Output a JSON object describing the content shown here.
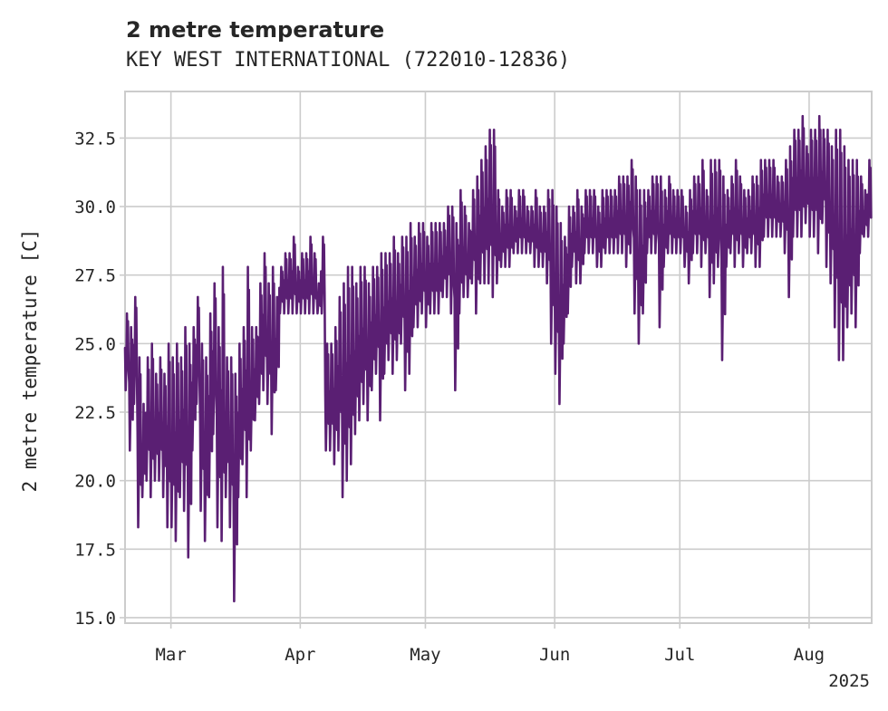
{
  "chart_data": {
    "type": "line",
    "title": "2 metre temperature",
    "subtitle": "KEY WEST INTERNATIONAL (722010-12836)",
    "ylabel": "2 metre temperature [C]",
    "xlabel": "",
    "x_axis_type": "date",
    "xlim": [
      "2025-02-18",
      "2025-08-16"
    ],
    "ylim": [
      14.8,
      34.2
    ],
    "grid": true,
    "legend": "none",
    "line_color": "#5a1f73",
    "x_ticks": [
      {
        "date": "2025-03-01",
        "label": "Mar"
      },
      {
        "date": "2025-04-01",
        "label": "Apr"
      },
      {
        "date": "2025-05-01",
        "label": "May"
      },
      {
        "date": "2025-06-01",
        "label": "Jun"
      },
      {
        "date": "2025-07-01",
        "label": "Jul"
      },
      {
        "date": "2025-08-01",
        "label": "Aug"
      }
    ],
    "x_offset_label": "2025",
    "y_ticks": [
      15.0,
      17.5,
      20.0,
      22.5,
      25.0,
      27.5,
      30.0,
      32.5
    ],
    "y_tick_labels": [
      "15.0",
      "17.5",
      "20.0",
      "22.5",
      "25.0",
      "27.5",
      "30.0",
      "32.5"
    ],
    "series": [
      {
        "x": [
          "2025-02-18",
          "2025-02-19",
          "2025-02-20",
          "2025-02-21",
          "2025-02-22",
          "2025-02-23",
          "2025-02-24",
          "2025-02-25",
          "2025-02-26",
          "2025-02-27",
          "2025-02-28",
          "2025-03-01",
          "2025-03-02",
          "2025-03-03",
          "2025-03-04",
          "2025-03-05",
          "2025-03-06",
          "2025-03-07",
          "2025-03-08",
          "2025-03-09",
          "2025-03-10",
          "2025-03-11",
          "2025-03-12",
          "2025-03-13",
          "2025-03-14",
          "2025-03-15",
          "2025-03-16",
          "2025-03-17",
          "2025-03-18",
          "2025-03-19",
          "2025-03-20",
          "2025-03-21",
          "2025-03-22",
          "2025-03-23",
          "2025-03-24",
          "2025-03-25",
          "2025-03-26",
          "2025-03-27",
          "2025-03-28",
          "2025-03-29",
          "2025-03-30",
          "2025-03-31",
          "2025-04-01",
          "2025-04-02",
          "2025-04-03",
          "2025-04-04",
          "2025-04-05",
          "2025-04-06",
          "2025-04-07",
          "2025-04-08",
          "2025-04-09",
          "2025-04-10",
          "2025-04-11",
          "2025-04-12",
          "2025-04-13",
          "2025-04-14",
          "2025-04-15",
          "2025-04-16",
          "2025-04-17",
          "2025-04-18",
          "2025-04-19",
          "2025-04-20",
          "2025-04-21",
          "2025-04-22",
          "2025-04-23",
          "2025-04-24",
          "2025-04-25",
          "2025-04-26",
          "2025-04-27",
          "2025-04-28",
          "2025-04-29",
          "2025-04-30",
          "2025-05-01",
          "2025-05-02",
          "2025-05-03",
          "2025-05-04",
          "2025-05-05",
          "2025-05-06",
          "2025-05-07",
          "2025-05-08",
          "2025-05-09",
          "2025-05-10",
          "2025-05-11",
          "2025-05-12",
          "2025-05-13",
          "2025-05-14",
          "2025-05-15",
          "2025-05-16",
          "2025-05-17",
          "2025-05-18",
          "2025-05-19",
          "2025-05-20",
          "2025-05-21",
          "2025-05-22",
          "2025-05-23",
          "2025-05-24",
          "2025-05-25",
          "2025-05-26",
          "2025-05-27",
          "2025-05-28",
          "2025-05-29",
          "2025-05-30",
          "2025-05-31",
          "2025-06-01",
          "2025-06-02",
          "2025-06-03",
          "2025-06-04",
          "2025-06-05",
          "2025-06-06",
          "2025-06-07",
          "2025-06-08",
          "2025-06-09",
          "2025-06-10",
          "2025-06-11",
          "2025-06-12",
          "2025-06-13",
          "2025-06-14",
          "2025-06-15",
          "2025-06-16",
          "2025-06-17",
          "2025-06-18",
          "2025-06-19",
          "2025-06-20",
          "2025-06-21",
          "2025-06-22",
          "2025-06-23",
          "2025-06-24",
          "2025-06-25",
          "2025-06-26",
          "2025-06-27",
          "2025-06-28",
          "2025-06-29",
          "2025-06-30",
          "2025-07-01",
          "2025-07-02",
          "2025-07-03",
          "2025-07-04",
          "2025-07-05",
          "2025-07-06",
          "2025-07-07",
          "2025-07-08",
          "2025-07-09",
          "2025-07-10",
          "2025-07-11",
          "2025-07-12",
          "2025-07-13",
          "2025-07-14",
          "2025-07-15",
          "2025-07-16",
          "2025-07-17",
          "2025-07-18",
          "2025-07-19",
          "2025-07-20",
          "2025-07-21",
          "2025-07-22",
          "2025-07-23",
          "2025-07-24",
          "2025-07-25",
          "2025-07-26",
          "2025-07-27",
          "2025-07-28",
          "2025-07-29",
          "2025-07-30",
          "2025-07-31",
          "2025-08-01",
          "2025-08-02",
          "2025-08-03",
          "2025-08-04",
          "2025-08-05",
          "2025-08-06",
          "2025-08-07",
          "2025-08-08",
          "2025-08-09",
          "2025-08-10",
          "2025-08-11",
          "2025-08-12",
          "2025-08-13",
          "2025-08-14",
          "2025-08-15"
        ],
        "y_max": [
          26.1,
          25.6,
          26.7,
          24.5,
          22.8,
          24.5,
          25.0,
          23.9,
          24.5,
          23.9,
          25.0,
          24.5,
          25.0,
          24.5,
          25.6,
          25.0,
          25.6,
          26.7,
          25.0,
          24.5,
          26.1,
          27.2,
          25.6,
          27.8,
          24.5,
          24.5,
          23.9,
          25.0,
          25.6,
          27.8,
          25.6,
          25.6,
          27.2,
          28.3,
          27.2,
          27.8,
          26.7,
          27.8,
          28.3,
          28.3,
          28.9,
          27.8,
          28.3,
          28.3,
          28.9,
          28.3,
          27.2,
          28.9,
          25.0,
          25.0,
          25.6,
          26.7,
          27.2,
          27.8,
          27.8,
          27.2,
          27.8,
          27.8,
          27.2,
          27.8,
          27.8,
          28.3,
          28.3,
          28.3,
          28.9,
          28.3,
          28.9,
          28.9,
          29.4,
          28.9,
          29.4,
          29.4,
          28.9,
          29.4,
          29.4,
          29.4,
          29.4,
          30.0,
          30.0,
          29.4,
          30.6,
          30.0,
          29.4,
          30.6,
          31.1,
          31.7,
          32.2,
          32.8,
          32.8,
          30.6,
          30.0,
          30.6,
          30.6,
          30.0,
          30.6,
          30.6,
          30.0,
          30.0,
          30.6,
          30.0,
          30.0,
          30.6,
          30.6,
          30.0,
          29.4,
          28.9,
          30.0,
          30.0,
          30.6,
          30.0,
          30.6,
          30.6,
          30.6,
          30.0,
          30.6,
          30.6,
          30.6,
          30.6,
          31.1,
          31.1,
          31.1,
          31.7,
          31.1,
          30.6,
          30.6,
          30.6,
          31.1,
          31.1,
          31.1,
          30.6,
          31.1,
          30.6,
          30.6,
          30.6,
          30.0,
          30.6,
          31.1,
          31.1,
          31.7,
          30.6,
          31.7,
          31.7,
          31.7,
          31.1,
          30.6,
          31.1,
          31.7,
          31.1,
          30.6,
          30.6,
          31.1,
          31.1,
          31.7,
          31.7,
          31.7,
          31.7,
          31.1,
          31.1,
          31.7,
          32.2,
          32.8,
          32.8,
          33.3,
          32.2,
          32.8,
          32.8,
          33.3,
          32.8,
          32.8,
          32.2,
          32.8,
          32.8,
          32.2,
          31.7,
          31.7,
          31.7,
          31.1,
          30.6,
          31.7,
          31.7
        ],
        "y_min": [
          23.3,
          21.1,
          22.8,
          18.3,
          19.4,
          20.0,
          19.4,
          20.0,
          20.0,
          19.4,
          18.3,
          18.3,
          17.8,
          19.4,
          18.9,
          17.2,
          21.1,
          22.8,
          18.9,
          17.8,
          19.4,
          21.7,
          18.3,
          17.8,
          19.4,
          18.3,
          15.6,
          19.4,
          20.6,
          19.4,
          21.1,
          22.2,
          22.8,
          23.3,
          22.8,
          21.7,
          23.3,
          26.1,
          26.1,
          26.1,
          26.1,
          26.1,
          26.1,
          26.1,
          26.1,
          26.1,
          26.1,
          26.1,
          21.1,
          21.1,
          20.6,
          21.1,
          19.4,
          20.0,
          20.6,
          21.7,
          22.2,
          22.8,
          22.2,
          23.3,
          23.9,
          22.2,
          23.9,
          24.4,
          23.9,
          24.4,
          25.0,
          23.3,
          23.9,
          25.6,
          25.6,
          26.1,
          25.6,
          26.1,
          26.1,
          26.1,
          26.7,
          26.7,
          26.1,
          23.3,
          26.1,
          26.7,
          26.7,
          27.2,
          26.1,
          27.2,
          27.2,
          27.2,
          26.7,
          27.2,
          27.8,
          27.8,
          27.8,
          28.3,
          28.3,
          28.3,
          28.3,
          28.3,
          27.8,
          27.8,
          27.8,
          27.2,
          25.0,
          23.9,
          22.8,
          25.0,
          26.1,
          27.8,
          27.2,
          27.2,
          28.3,
          28.3,
          28.3,
          27.8,
          27.8,
          28.3,
          28.3,
          28.3,
          28.3,
          28.3,
          27.8,
          28.3,
          26.1,
          25.0,
          26.1,
          28.3,
          28.3,
          28.3,
          25.6,
          27.8,
          28.3,
          28.3,
          28.3,
          28.3,
          27.8,
          27.2,
          28.3,
          28.3,
          27.8,
          28.3,
          26.7,
          27.2,
          27.8,
          24.4,
          27.8,
          28.3,
          27.8,
          28.3,
          27.8,
          28.3,
          28.3,
          27.8,
          27.8,
          28.9,
          28.9,
          28.9,
          28.9,
          28.9,
          28.3,
          26.7,
          28.9,
          28.9,
          28.9,
          29.4,
          28.9,
          28.9,
          28.3,
          29.4,
          27.8,
          27.2,
          25.6,
          24.4,
          24.4,
          25.6,
          26.1,
          25.6,
          28.3,
          28.9,
          28.9,
          28.9
        ]
      }
    ]
  }
}
